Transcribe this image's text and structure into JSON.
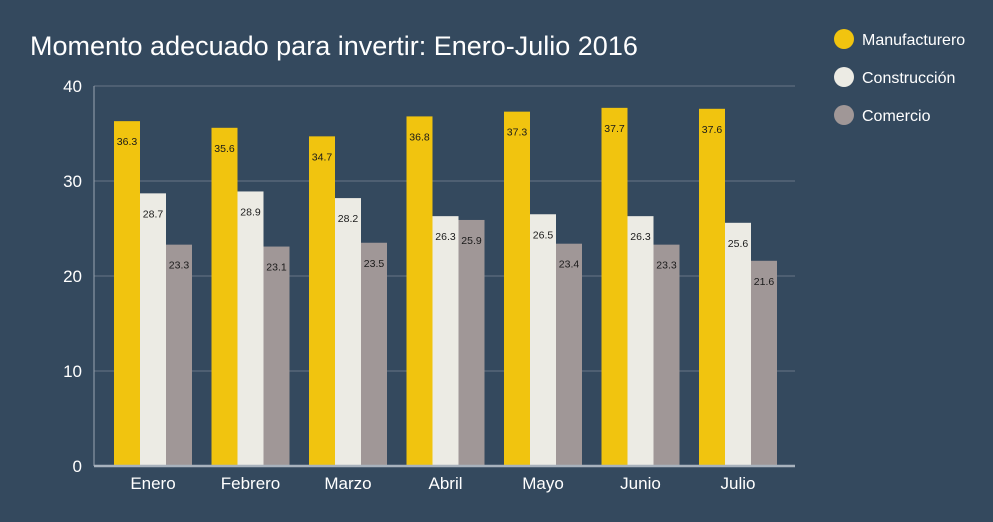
{
  "chart_data": {
    "type": "bar",
    "title": "Momento adecuado para invertir: Enero-Julio 2016",
    "categories": [
      "Enero",
      "Febrero",
      "Marzo",
      "Abril",
      "Mayo",
      "Junio",
      "Julio"
    ],
    "series": [
      {
        "name": "Manufacturero",
        "color": "#f1c40f",
        "values": [
          36.3,
          35.6,
          34.7,
          36.8,
          37.3,
          37.7,
          37.6
        ]
      },
      {
        "name": "Construcción",
        "color": "#ecebe4",
        "values": [
          28.7,
          28.9,
          28.2,
          26.3,
          26.5,
          26.3,
          25.6
        ]
      },
      {
        "name": "Comercio",
        "color": "#a09797",
        "values": [
          23.3,
          23.1,
          23.5,
          25.9,
          23.4,
          23.3,
          21.6
        ]
      }
    ],
    "ylim": [
      0,
      40
    ],
    "yticks": [
      0,
      10,
      20,
      30,
      40
    ],
    "xlabel": "",
    "ylabel": "",
    "grid": true,
    "legend_position": "top-right",
    "background_color": "#34495e",
    "gridline_color": "#5d6d7e"
  }
}
